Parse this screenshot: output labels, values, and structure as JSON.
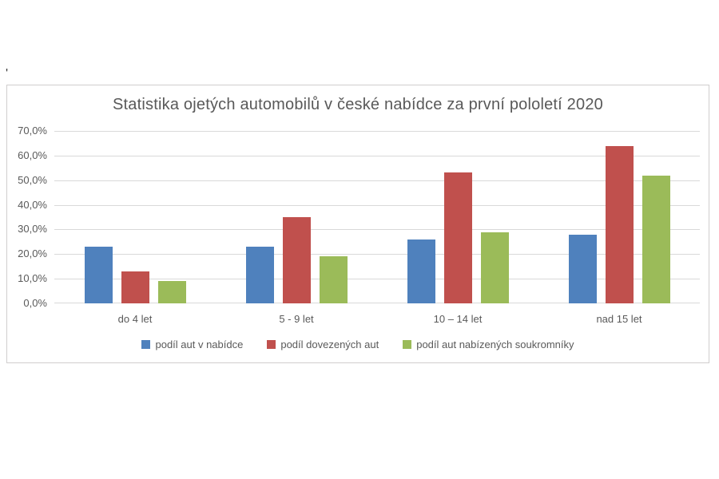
{
  "page": {
    "background": "#ffffff",
    "stray_mark": "'"
  },
  "chart_data": {
    "type": "bar",
    "title": "Statistika ojetých automobilů v české nabídce za první pololetí 2020",
    "categories": [
      "do 4 let",
      "5 - 9 let",
      "10 – 14 let",
      "nad 15 let"
    ],
    "series": [
      {
        "name": "podíl aut v nabídce",
        "color": "#4F81BD",
        "values": [
          23,
          23,
          26,
          28
        ]
      },
      {
        "name": "podíl dovezených aut",
        "color": "#C0504D",
        "values": [
          13,
          35,
          53,
          64
        ]
      },
      {
        "name": "podíl aut nabízených soukromníky",
        "color": "#9BBB59",
        "values": [
          9,
          19,
          29,
          52
        ]
      }
    ],
    "xlabel": "",
    "ylabel": "",
    "ylim": [
      0,
      70
    ],
    "ytick_step": 10,
    "ytick_labels": [
      "0,0%",
      "10,0%",
      "20,0%",
      "30,0%",
      "40,0%",
      "50,0%",
      "60,0%",
      "70,0%"
    ],
    "grid": true,
    "legend_position": "bottom",
    "grid_color": "#d9d9d9",
    "text_color": "#595959",
    "border_color": "#d0cece"
  }
}
